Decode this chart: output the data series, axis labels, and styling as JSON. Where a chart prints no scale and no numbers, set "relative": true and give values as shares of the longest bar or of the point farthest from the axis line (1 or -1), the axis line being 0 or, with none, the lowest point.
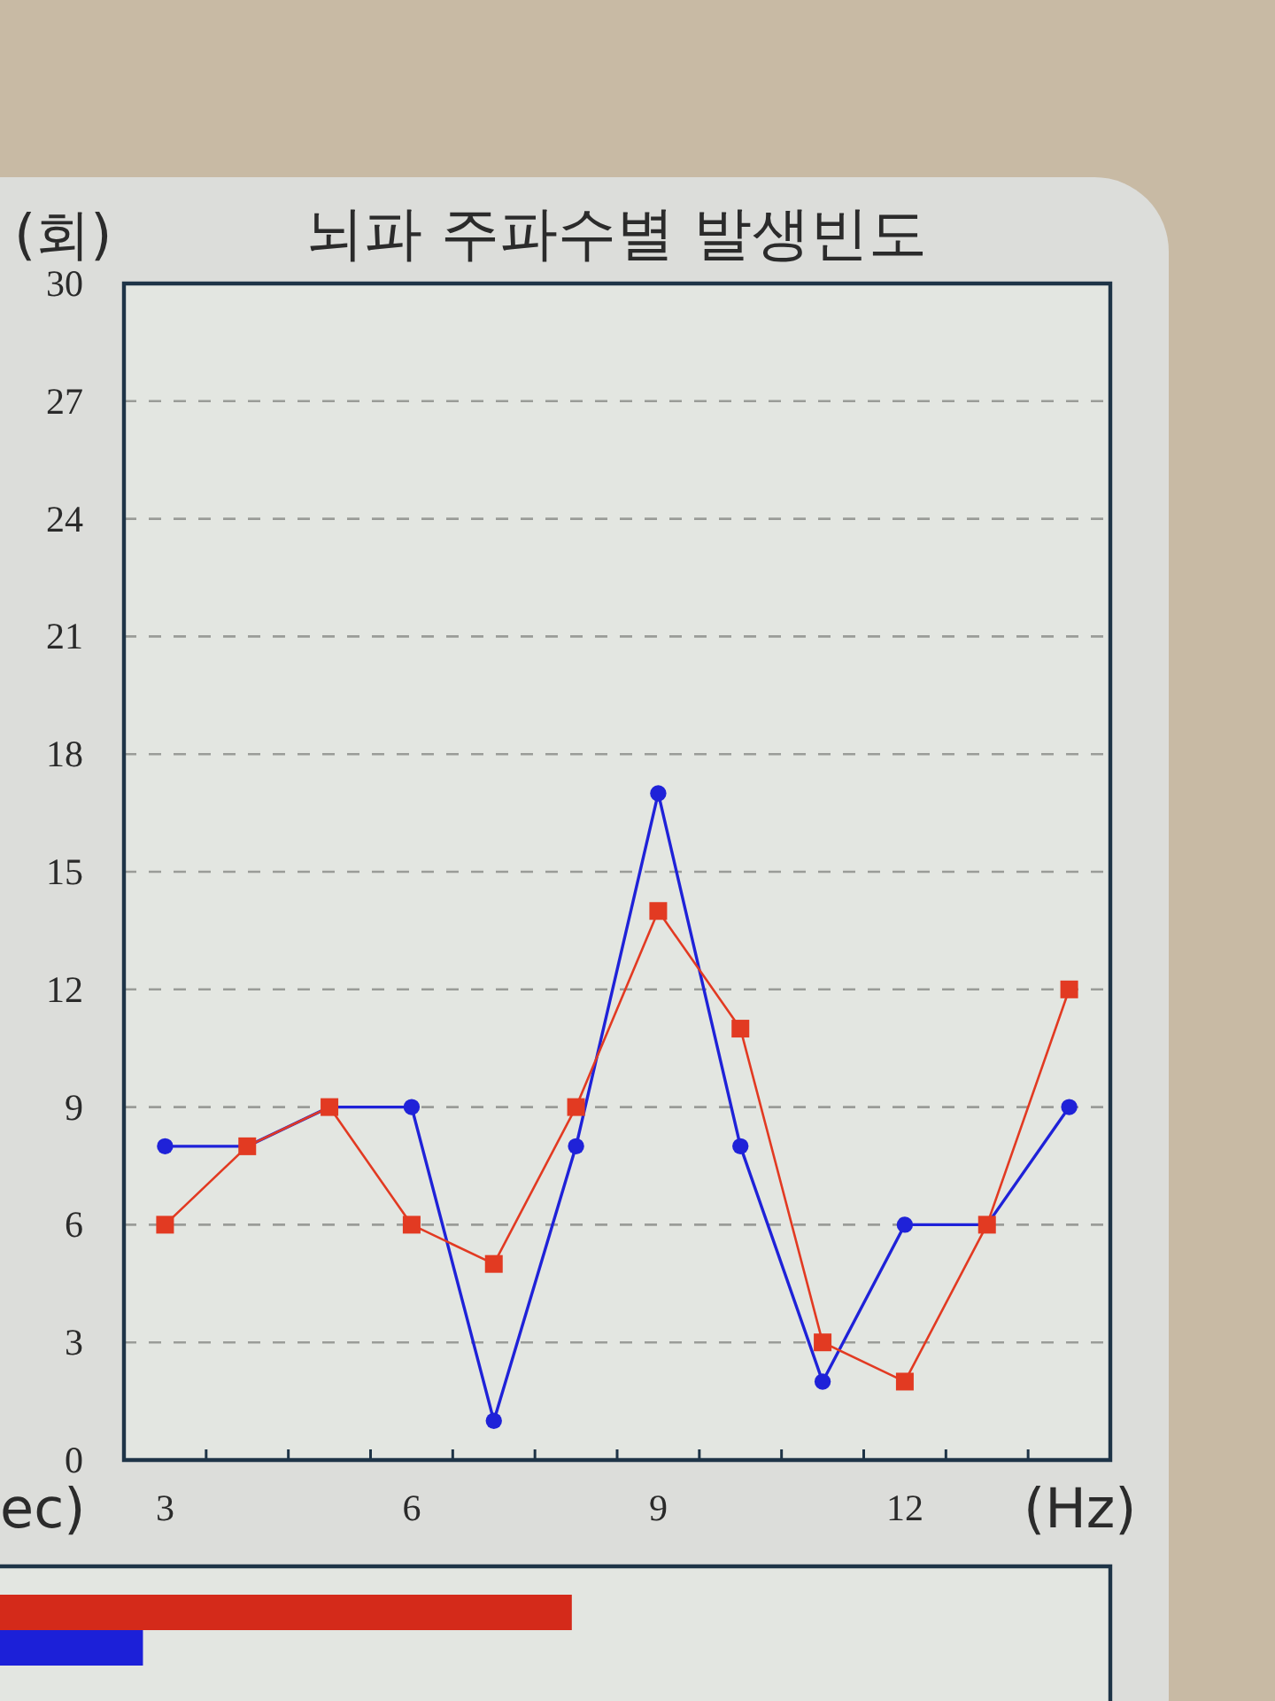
{
  "chart_data": [
    {
      "type": "line",
      "title": "뇌파 주파수별 발생빈도",
      "ylabel": "(회)",
      "xlabel": "(Hz)",
      "x": [
        3,
        4,
        5,
        6,
        7,
        8,
        9,
        10,
        11,
        12,
        13,
        14
      ],
      "series": [
        {
          "color": "#1f22d8",
          "marker": "circle",
          "values": [
            8,
            8,
            9,
            9,
            1,
            8,
            17,
            8,
            2,
            6,
            6,
            9
          ]
        },
        {
          "color": "#e23a22",
          "marker": "square",
          "values": [
            6,
            8,
            9,
            6,
            5,
            9,
            14,
            11,
            3,
            2,
            6,
            12
          ]
        }
      ],
      "xlim": [
        2.5,
        14.5
      ],
      "xticks": [
        3,
        {
          "value": 3.5,
          "label": null
        },
        {
          "value": 4.5,
          "label": null
        },
        {
          "value": 5.5,
          "label": null
        },
        6,
        {
          "value": 6.5,
          "label": null
        },
        {
          "value": 7.5,
          "label": null
        },
        {
          "value": 8.5,
          "label": null
        },
        9,
        {
          "value": 9.5,
          "label": null
        },
        {
          "value": 10.5,
          "label": null
        },
        {
          "value": 11.5,
          "label": null
        },
        12,
        {
          "value": 12.5,
          "label": null
        },
        {
          "value": 13.5,
          "label": null
        }
      ],
      "ylim": [
        0,
        30
      ],
      "yticks": [
        0,
        3,
        6,
        9,
        12,
        15,
        18,
        21,
        24,
        27,
        30
      ],
      "grid": "y"
    },
    {
      "type": "bar",
      "orientation": "horizontal",
      "relative": true,
      "categories": [
        null,
        null
      ],
      "values": [
        1,
        0.25
      ],
      "colors": [
        "#d42a1a",
        "#1c20d8"
      ],
      "annotations": [
        "ec)"
      ]
    }
  ]
}
